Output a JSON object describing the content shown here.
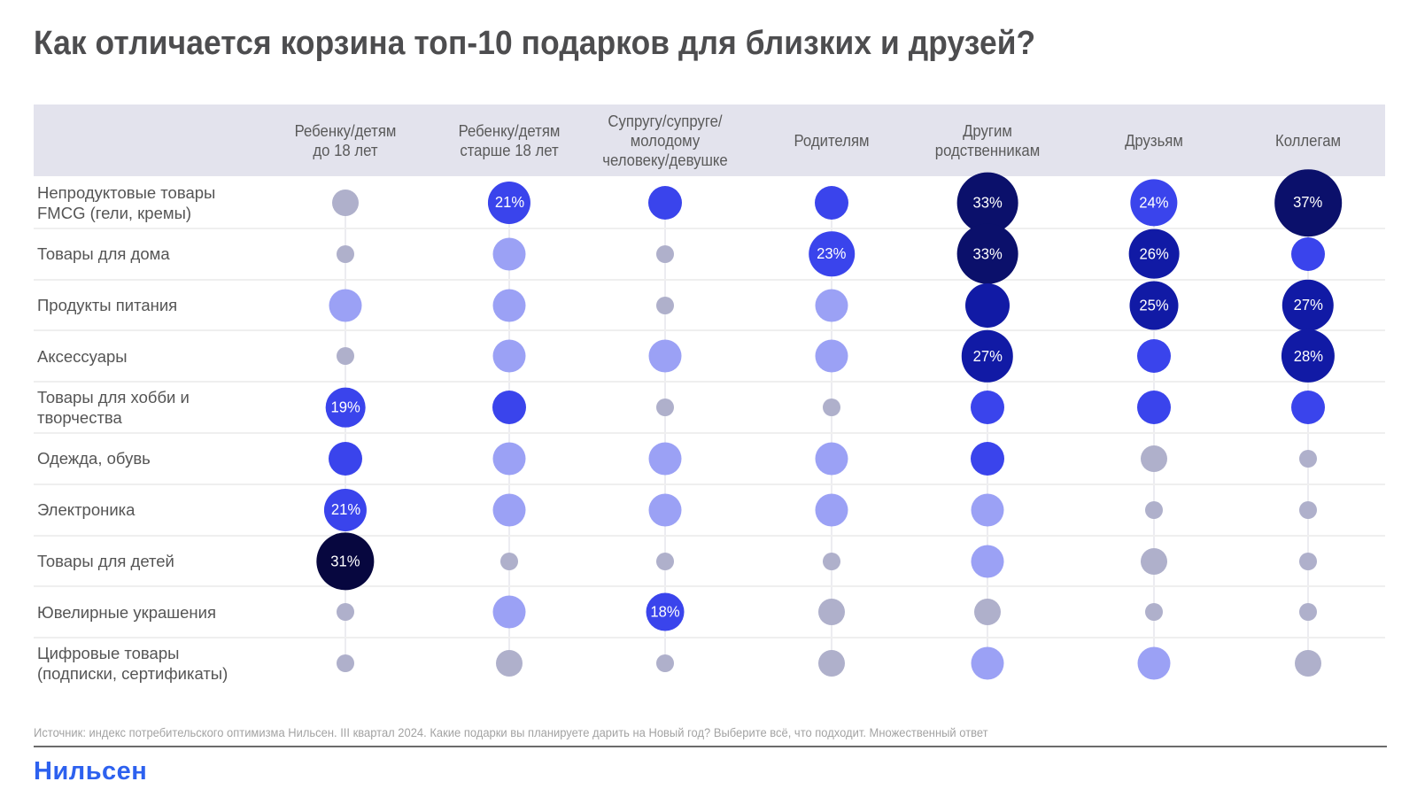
{
  "title": "Как отличается корзина топ-10 подарков для близких и друзей?",
  "source": "Источник: индекс потребительского оптимизма Нильсен. III квартал 2024. Какие подарки вы планируете дарить на Новый год? Выберите всё, что подходит. Множественный ответ",
  "logo": "Нильсен",
  "colors": {
    "header_band": "#e3e3ed",
    "gray": "#afb0cb",
    "light": "#9ba1f5",
    "blue": "#3a44ec",
    "dark": "#111aa5",
    "navy": "#0b106b",
    "darkest": "#07073f",
    "brand": "#2d61ef"
  },
  "chart_data": {
    "type": "heatmap",
    "subtype": "bubble-matrix",
    "title": "Как отличается корзина топ-10 подарков для близких и друзей?",
    "columns": [
      "Ребенку/детям до 18 лет",
      "Ребенку/детям старше 18 лет",
      "Супругу/супруге/ молодому человеку/девушке",
      "Родителям",
      "Другим родственникам",
      "Друзьям",
      "Коллегам"
    ],
    "column_lines": [
      [
        "Ребенку/детям",
        "до 18 лет"
      ],
      [
        "Ребенку/детям",
        "старше 18 лет"
      ],
      [
        "Супругу/супруге/",
        "молодому",
        "человеку/девушке"
      ],
      [
        "Родителям"
      ],
      [
        "Другим",
        "родственникам"
      ],
      [
        "Друзьям"
      ],
      [
        "Коллегам"
      ]
    ],
    "rows": [
      [
        "Непродуктовые товары",
        "FMCG (гели, кремы)"
      ],
      [
        "Товары для дома"
      ],
      [
        "Продукты питания"
      ],
      [
        "Аксессуары"
      ],
      [
        "Товары для хобби и",
        "творчества"
      ],
      [
        "Одежда, обувь"
      ],
      [
        "Электроника"
      ],
      [
        "Товары для детей"
      ],
      [
        "Ювелирные украшения"
      ],
      [
        "Цифровые товары",
        "(подписки, сертификаты)"
      ]
    ],
    "tier_legend": {
      "gray-s": "low share (small gray)",
      "gray-m": "low-mid share (gray)",
      "light": "mid share (light purple)",
      "blue": "high share (blue)",
      "dark": "very high share (dark blue)",
      "navy": "highest share (navy)",
      "darkest": "highest in column (near-black navy)"
    },
    "cells": [
      [
        {
          "tier": "gray-m",
          "label": ""
        },
        {
          "tier": "blue",
          "label": "21%",
          "value": 21
        },
        {
          "tier": "blue",
          "label": ""
        },
        {
          "tier": "blue",
          "label": ""
        },
        {
          "tier": "navy",
          "label": "33%",
          "value": 33
        },
        {
          "tier": "blue",
          "label": "24%",
          "value": 24
        },
        {
          "tier": "navy",
          "label": "37%",
          "value": 37
        }
      ],
      [
        {
          "tier": "gray-s",
          "label": ""
        },
        {
          "tier": "light",
          "label": ""
        },
        {
          "tier": "gray-s",
          "label": ""
        },
        {
          "tier": "blue",
          "label": "23%",
          "value": 23
        },
        {
          "tier": "navy",
          "label": "33%",
          "value": 33
        },
        {
          "tier": "dark",
          "label": "26%",
          "value": 26
        },
        {
          "tier": "blue",
          "label": ""
        }
      ],
      [
        {
          "tier": "light",
          "label": ""
        },
        {
          "tier": "light",
          "label": ""
        },
        {
          "tier": "gray-s",
          "label": ""
        },
        {
          "tier": "light",
          "label": ""
        },
        {
          "tier": "dark",
          "label": ""
        },
        {
          "tier": "dark",
          "label": "25%",
          "value": 25
        },
        {
          "tier": "dark",
          "label": "27%",
          "value": 27
        }
      ],
      [
        {
          "tier": "gray-s",
          "label": ""
        },
        {
          "tier": "light",
          "label": ""
        },
        {
          "tier": "light",
          "label": ""
        },
        {
          "tier": "light",
          "label": ""
        },
        {
          "tier": "dark",
          "label": "27%",
          "value": 27
        },
        {
          "tier": "blue",
          "label": ""
        },
        {
          "tier": "dark",
          "label": "28%",
          "value": 28
        }
      ],
      [
        {
          "tier": "blue",
          "label": "19%",
          "value": 19
        },
        {
          "tier": "blue",
          "label": ""
        },
        {
          "tier": "gray-s",
          "label": ""
        },
        {
          "tier": "gray-s",
          "label": ""
        },
        {
          "tier": "blue",
          "label": ""
        },
        {
          "tier": "blue",
          "label": ""
        },
        {
          "tier": "blue",
          "label": ""
        }
      ],
      [
        {
          "tier": "blue",
          "label": ""
        },
        {
          "tier": "light",
          "label": ""
        },
        {
          "tier": "light",
          "label": ""
        },
        {
          "tier": "light",
          "label": ""
        },
        {
          "tier": "blue",
          "label": ""
        },
        {
          "tier": "gray-m",
          "label": ""
        },
        {
          "tier": "gray-s",
          "label": ""
        }
      ],
      [
        {
          "tier": "blue",
          "label": "21%",
          "value": 21
        },
        {
          "tier": "light",
          "label": ""
        },
        {
          "tier": "light",
          "label": ""
        },
        {
          "tier": "light",
          "label": ""
        },
        {
          "tier": "light",
          "label": ""
        },
        {
          "tier": "gray-s",
          "label": ""
        },
        {
          "tier": "gray-s",
          "label": ""
        }
      ],
      [
        {
          "tier": "darkest",
          "label": "31%",
          "value": 31
        },
        {
          "tier": "gray-s",
          "label": ""
        },
        {
          "tier": "gray-s",
          "label": ""
        },
        {
          "tier": "gray-s",
          "label": ""
        },
        {
          "tier": "light",
          "label": ""
        },
        {
          "tier": "gray-m",
          "label": ""
        },
        {
          "tier": "gray-s",
          "label": ""
        }
      ],
      [
        {
          "tier": "gray-s",
          "label": ""
        },
        {
          "tier": "light",
          "label": ""
        },
        {
          "tier": "blue",
          "label": "18%",
          "value": 18
        },
        {
          "tier": "gray-m",
          "label": ""
        },
        {
          "tier": "gray-m",
          "label": ""
        },
        {
          "tier": "gray-s",
          "label": ""
        },
        {
          "tier": "gray-s",
          "label": ""
        }
      ],
      [
        {
          "tier": "gray-s",
          "label": ""
        },
        {
          "tier": "gray-m",
          "label": ""
        },
        {
          "tier": "gray-s",
          "label": ""
        },
        {
          "tier": "gray-m",
          "label": ""
        },
        {
          "tier": "light",
          "label": ""
        },
        {
          "tier": "light",
          "label": ""
        },
        {
          "tier": "gray-m",
          "label": ""
        }
      ]
    ]
  }
}
